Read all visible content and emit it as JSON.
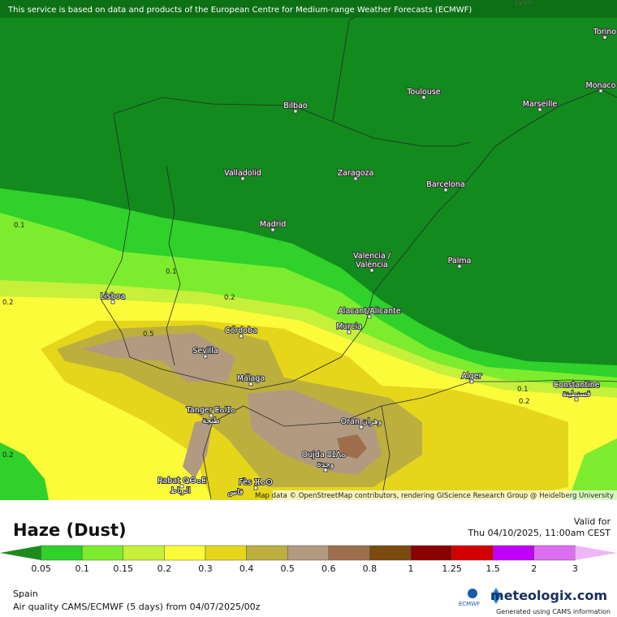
{
  "header": {
    "notice": "This service is based on data and products of the European Centre for Medium-range Weather Forecasts (ECMWF)"
  },
  "map": {
    "cities": [
      "Lyon",
      "Torino",
      "Monaco",
      "Toulouse",
      "Marseille",
      "Bilbao",
      "Valladolid",
      "Zaragoza",
      "Barcelona",
      "Madrid",
      "Valencia /",
      "València",
      "Palma",
      "Lisboa",
      "Alacant/Alicante",
      "Córdoba",
      "Murcia",
      "Sevilla",
      "Málaga",
      "Alger",
      "Constantine",
      "قسنطينة",
      "Tanger ⵟⴰⵏⵊⴰ",
      "طنجة",
      "Oran وهران",
      "Oujda ⵓⵊⴷⴰ",
      "وجدة",
      "Rabat ⵕⴱⴰⵟ",
      "الرباط",
      "Fès ⴼⴰⵙ",
      "فاس"
    ],
    "contours": [
      "0.1",
      "0.2",
      "0.1",
      "0.2",
      "0.5",
      "0.2",
      "0.1",
      "0.2"
    ],
    "attribution": "Map data © OpenStreetMap contributors, rendering GIScience Research Group @ Heidelberg University"
  },
  "panel": {
    "title": "Haze (Dust)",
    "valid_label": "Valid for",
    "valid_time": "Thu 04/10/2025, 11:00am CEST",
    "region": "Spain",
    "source": "Air quality CAMS/ECMWF (5 days) from 04/07/2025/00z",
    "ecmwf": "ECMWF",
    "brand": "meteologix.com",
    "generated": "Generated using CAMS information"
  },
  "legend": {
    "colors": [
      "#1e8a1e",
      "#2fd12a",
      "#7eec2e",
      "#c6f03a",
      "#fbfb3a",
      "#e5d61c",
      "#bdaf3e",
      "#b19a80",
      "#9e6e4c",
      "#7a4a0e",
      "#8a0000",
      "#d40000",
      "#c000f8",
      "#de6ef0",
      "#efb6f7"
    ],
    "labels": [
      "0.05",
      "0.1",
      "0.15",
      "0.2",
      "0.3",
      "0.4",
      "0.5",
      "0.6",
      "0.8",
      "1",
      "1.25",
      "1.5",
      "2",
      "3"
    ]
  }
}
